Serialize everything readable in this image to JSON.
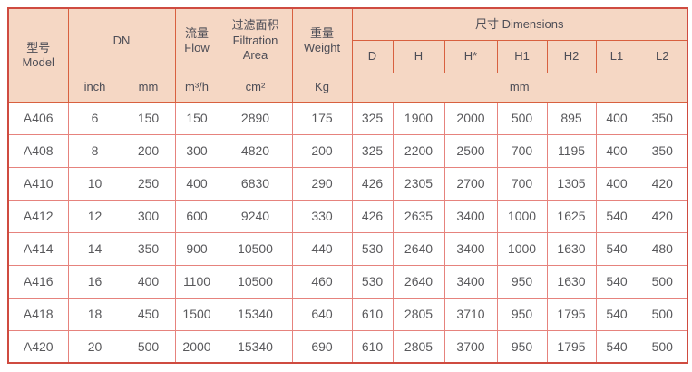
{
  "colors": {
    "header_bg": "#f5d7c4",
    "header_border": "#d8603f",
    "data_border": "#e6837d",
    "outer_border": "#cf4b40",
    "header_text": "#4d4d56",
    "data_text": "#59595c",
    "data_bg": "#ffffff"
  },
  "table": {
    "header": {
      "model_zh": "型号",
      "model_en": "Model",
      "dn": "DN",
      "flow_zh": "流量",
      "flow_en": "Flow",
      "filtration_zh": "过滤面积",
      "filtration_en": "Filtration Area",
      "weight_zh": "重量",
      "weight_en": "Weight",
      "dimensions": "尺寸 Dimensions",
      "dim_cols": [
        "D",
        "H",
        "H*",
        "H1",
        "H2",
        "L1",
        "L2"
      ],
      "unit_inch": "inch",
      "unit_mm": "mm",
      "unit_flow": "m³/h",
      "unit_area": "cm²",
      "unit_weight": "Kg",
      "unit_dims": "mm"
    },
    "rows": [
      [
        "A406",
        "6",
        "150",
        "150",
        "2890",
        "175",
        "325",
        "1900",
        "2000",
        "500",
        "895",
        "400",
        "350"
      ],
      [
        "A408",
        "8",
        "200",
        "300",
        "4820",
        "200",
        "325",
        "2200",
        "2500",
        "700",
        "1195",
        "400",
        "350"
      ],
      [
        "A410",
        "10",
        "250",
        "400",
        "6830",
        "290",
        "426",
        "2305",
        "2700",
        "700",
        "1305",
        "400",
        "420"
      ],
      [
        "A412",
        "12",
        "300",
        "600",
        "9240",
        "330",
        "426",
        "2635",
        "3400",
        "1000",
        "1625",
        "540",
        "420"
      ],
      [
        "A414",
        "14",
        "350",
        "900",
        "10500",
        "440",
        "530",
        "2640",
        "3400",
        "1000",
        "1630",
        "540",
        "480"
      ],
      [
        "A416",
        "16",
        "400",
        "1100",
        "10500",
        "460",
        "530",
        "2640",
        "3400",
        "950",
        "1630",
        "540",
        "500"
      ],
      [
        "A418",
        "18",
        "450",
        "1500",
        "15340",
        "640",
        "610",
        "2805",
        "3710",
        "950",
        "1795",
        "540",
        "500"
      ],
      [
        "A420",
        "20",
        "500",
        "2000",
        "15340",
        "690",
        "610",
        "2805",
        "3700",
        "950",
        "1795",
        "540",
        "500"
      ]
    ]
  }
}
